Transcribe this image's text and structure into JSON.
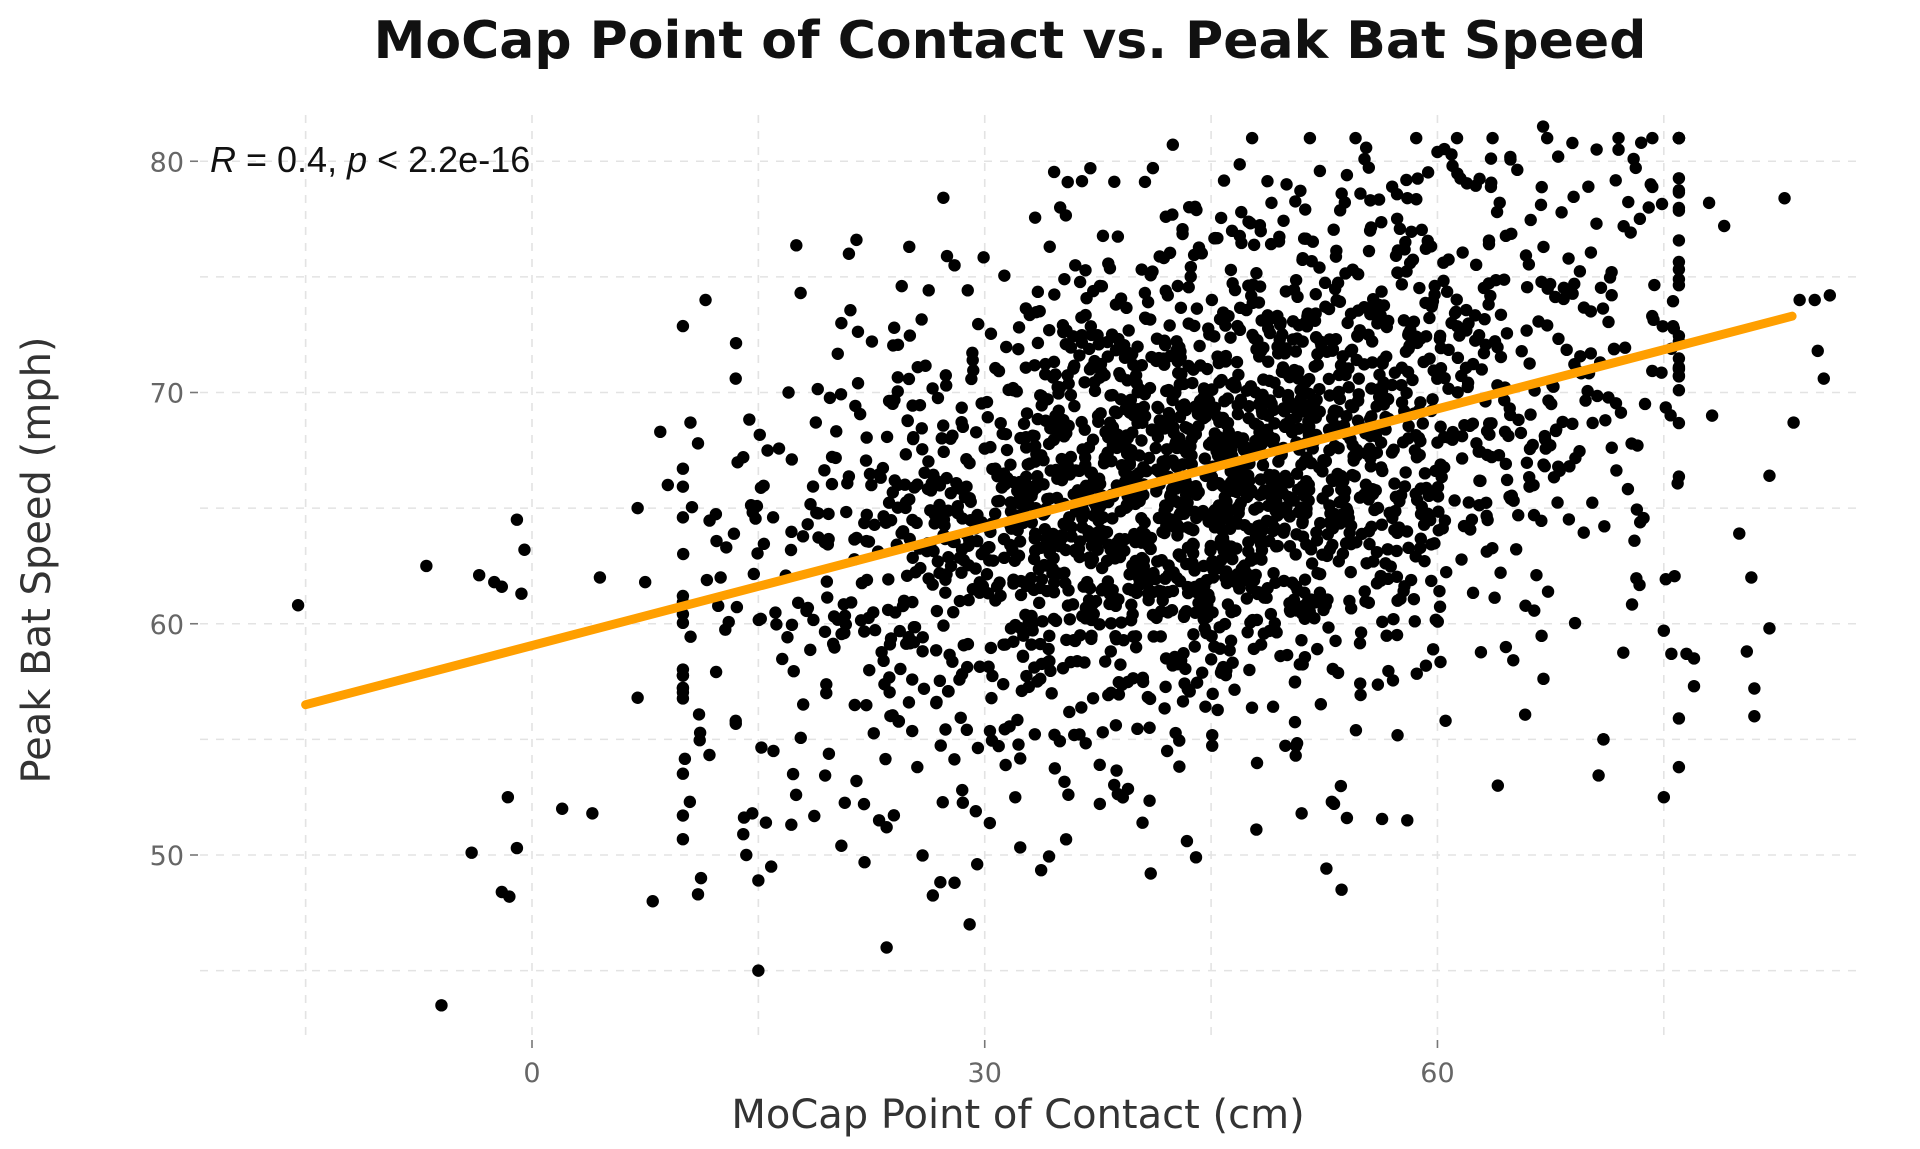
{
  "chart_data": {
    "type": "scatter",
    "title": "MoCap Point of Contact vs. Peak Bat Speed",
    "xlabel": "MoCap Point of Contact (cm)",
    "ylabel": "Peak Bat Speed (mph)",
    "xlim": [
      -22,
      88
    ],
    "ylim": [
      42,
      82
    ],
    "x_ticks": [
      0,
      30,
      60
    ],
    "y_ticks": [
      50,
      60,
      70,
      80
    ],
    "x_minor_grid": [
      -15,
      15,
      45,
      75
    ],
    "y_minor_grid": [
      45,
      55,
      65,
      75
    ],
    "grid": true,
    "legend": "none",
    "point_color": "#000000",
    "fit_color": "#ff9f00",
    "annotation": {
      "r_symbol": "R",
      "r_value": " = 0.4, ",
      "p_symbol": "p",
      "p_value": " < 2.2e-16"
    },
    "regression_line": {
      "x": [
        -15,
        83.5
      ],
      "y": [
        56.5,
        73.3
      ]
    },
    "highlight_points": [
      {
        "x": -15.5,
        "y": 60.8
      },
      {
        "x": -7,
        "y": 62.5
      },
      {
        "x": -6,
        "y": 43.5
      },
      {
        "x": -4,
        "y": 50.1
      },
      {
        "x": -3.5,
        "y": 62.1
      },
      {
        "x": -2.5,
        "y": 61.8
      },
      {
        "x": -2,
        "y": 61.6
      },
      {
        "x": -2,
        "y": 48.4
      },
      {
        "x": -1.6,
        "y": 52.5
      },
      {
        "x": -1.5,
        "y": 48.2
      },
      {
        "x": -1,
        "y": 64.5
      },
      {
        "x": -1,
        "y": 50.3
      },
      {
        "x": -0.7,
        "y": 61.3
      },
      {
        "x": -0.5,
        "y": 63.2
      },
      {
        "x": 2,
        "y": 52.0
      },
      {
        "x": 4,
        "y": 51.8
      },
      {
        "x": 4.5,
        "y": 62.0
      },
      {
        "x": 7,
        "y": 56.8
      },
      {
        "x": 7,
        "y": 65.0
      },
      {
        "x": 7.5,
        "y": 61.8
      },
      {
        "x": 8,
        "y": 48.0
      },
      {
        "x": 8.5,
        "y": 68.3
      },
      {
        "x": 9,
        "y": 66.0
      },
      {
        "x": 10,
        "y": 57.2
      },
      {
        "x": 10,
        "y": 64.6
      },
      {
        "x": 10.5,
        "y": 68.7
      },
      {
        "x": 11,
        "y": 48.3
      },
      {
        "x": 11,
        "y": 67.8
      },
      {
        "x": 11.2,
        "y": 49.0
      },
      {
        "x": 11.5,
        "y": 74.0
      },
      {
        "x": 12.5,
        "y": 62.0
      },
      {
        "x": 13.5,
        "y": 55.8
      },
      {
        "x": 13.5,
        "y": 70.6
      },
      {
        "x": 14,
        "y": 50.9
      },
      {
        "x": 14,
        "y": 67.2
      },
      {
        "x": 14.2,
        "y": 50.0
      },
      {
        "x": 14.6,
        "y": 51.8
      },
      {
        "x": 15,
        "y": 48.9
      },
      {
        "x": 15,
        "y": 45.0
      },
      {
        "x": 15.5,
        "y": 51.4
      },
      {
        "x": 16,
        "y": 54.5
      },
      {
        "x": 17,
        "y": 70.0
      },
      {
        "x": 17.3,
        "y": 53.5
      },
      {
        "x": 17.5,
        "y": 52.6
      },
      {
        "x": 19.5,
        "y": 57.0
      },
      {
        "x": 20.5,
        "y": 73.0
      },
      {
        "x": 20.5,
        "y": 50.4
      },
      {
        "x": 21,
        "y": 76.0
      },
      {
        "x": 21.5,
        "y": 76.6
      },
      {
        "x": 21.5,
        "y": 53.2
      },
      {
        "x": 22,
        "y": 52.2
      },
      {
        "x": 23,
        "y": 51.5
      },
      {
        "x": 23.5,
        "y": 51.2
      },
      {
        "x": 23.5,
        "y": 46.0
      },
      {
        "x": 24,
        "y": 72.8
      },
      {
        "x": 24.5,
        "y": 74.6
      },
      {
        "x": 25,
        "y": 76.3
      },
      {
        "x": 27.5,
        "y": 75.9
      },
      {
        "x": 28,
        "y": 75.5
      },
      {
        "x": 28,
        "y": 48.8
      },
      {
        "x": 29,
        "y": 47.0
      },
      {
        "x": 29.5,
        "y": 49.6
      },
      {
        "x": 35,
        "y": 78.0
      },
      {
        "x": 35.5,
        "y": 79.1
      },
      {
        "x": 36,
        "y": 75.5
      },
      {
        "x": 37,
        "y": 79.7
      },
      {
        "x": 41,
        "y": 49.2
      },
      {
        "x": 42,
        "y": 77.6
      },
      {
        "x": 44,
        "y": 49.9
      },
      {
        "x": 47,
        "y": 77.8
      },
      {
        "x": 48,
        "y": 51.1
      },
      {
        "x": 49,
        "y": 78.2
      },
      {
        "x": 50,
        "y": 79.0
      },
      {
        "x": 51,
        "y": 51.8
      },
      {
        "x": 53,
        "y": 52.3
      },
      {
        "x": 54,
        "y": 79.4
      },
      {
        "x": 54,
        "y": 51.6
      },
      {
        "x": 57,
        "y": 78.9
      },
      {
        "x": 58,
        "y": 51.5
      },
      {
        "x": 60,
        "y": 80.4
      },
      {
        "x": 61,
        "y": 79.8
      },
      {
        "x": 64,
        "y": 53.0
      },
      {
        "x": 67,
        "y": 81.5
      },
      {
        "x": 68,
        "y": 80.2
      },
      {
        "x": 70,
        "y": 78.9
      },
      {
        "x": 71,
        "y": 55.0
      },
      {
        "x": 71,
        "y": 55.0
      },
      {
        "x": 72,
        "y": 80.5
      },
      {
        "x": 73,
        "y": 80.1
      },
      {
        "x": 73.5,
        "y": 80.8
      },
      {
        "x": 74,
        "y": 78.0
      },
      {
        "x": 75,
        "y": 52.5
      },
      {
        "x": 76,
        "y": 53.8
      },
      {
        "x": 77,
        "y": 58.5
      },
      {
        "x": 77,
        "y": 57.3
      },
      {
        "x": 78,
        "y": 78.2
      },
      {
        "x": 79,
        "y": 77.2
      },
      {
        "x": 80,
        "y": 63.9
      },
      {
        "x": 80.5,
        "y": 58.8
      },
      {
        "x": 81,
        "y": 56.0
      },
      {
        "x": 81,
        "y": 57.2
      },
      {
        "x": 82,
        "y": 66.4
      },
      {
        "x": 83,
        "y": 78.4
      },
      {
        "x": 84,
        "y": 74.0
      },
      {
        "x": 75,
        "y": 59.7
      },
      {
        "x": 75.5,
        "y": 58.7
      },
      {
        "x": 76.5,
        "y": 58.7
      },
      {
        "x": 78.2,
        "y": 69.0
      },
      {
        "x": 80.8,
        "y": 62.0
      },
      {
        "x": 82.0,
        "y": 59.8
      },
      {
        "x": 83.6,
        "y": 68.7
      },
      {
        "x": 85.0,
        "y": 74.0
      },
      {
        "x": 85.2,
        "y": 71.8
      },
      {
        "x": 85.6,
        "y": 70.6
      },
      {
        "x": 86.0,
        "y": 74.2
      }
    ],
    "cluster": {
      "n_points": 2400,
      "x_mean": 45,
      "x_sd": 14,
      "y_mean": 66.5,
      "y_sd": 5.4,
      "slope": 0.17
    }
  }
}
